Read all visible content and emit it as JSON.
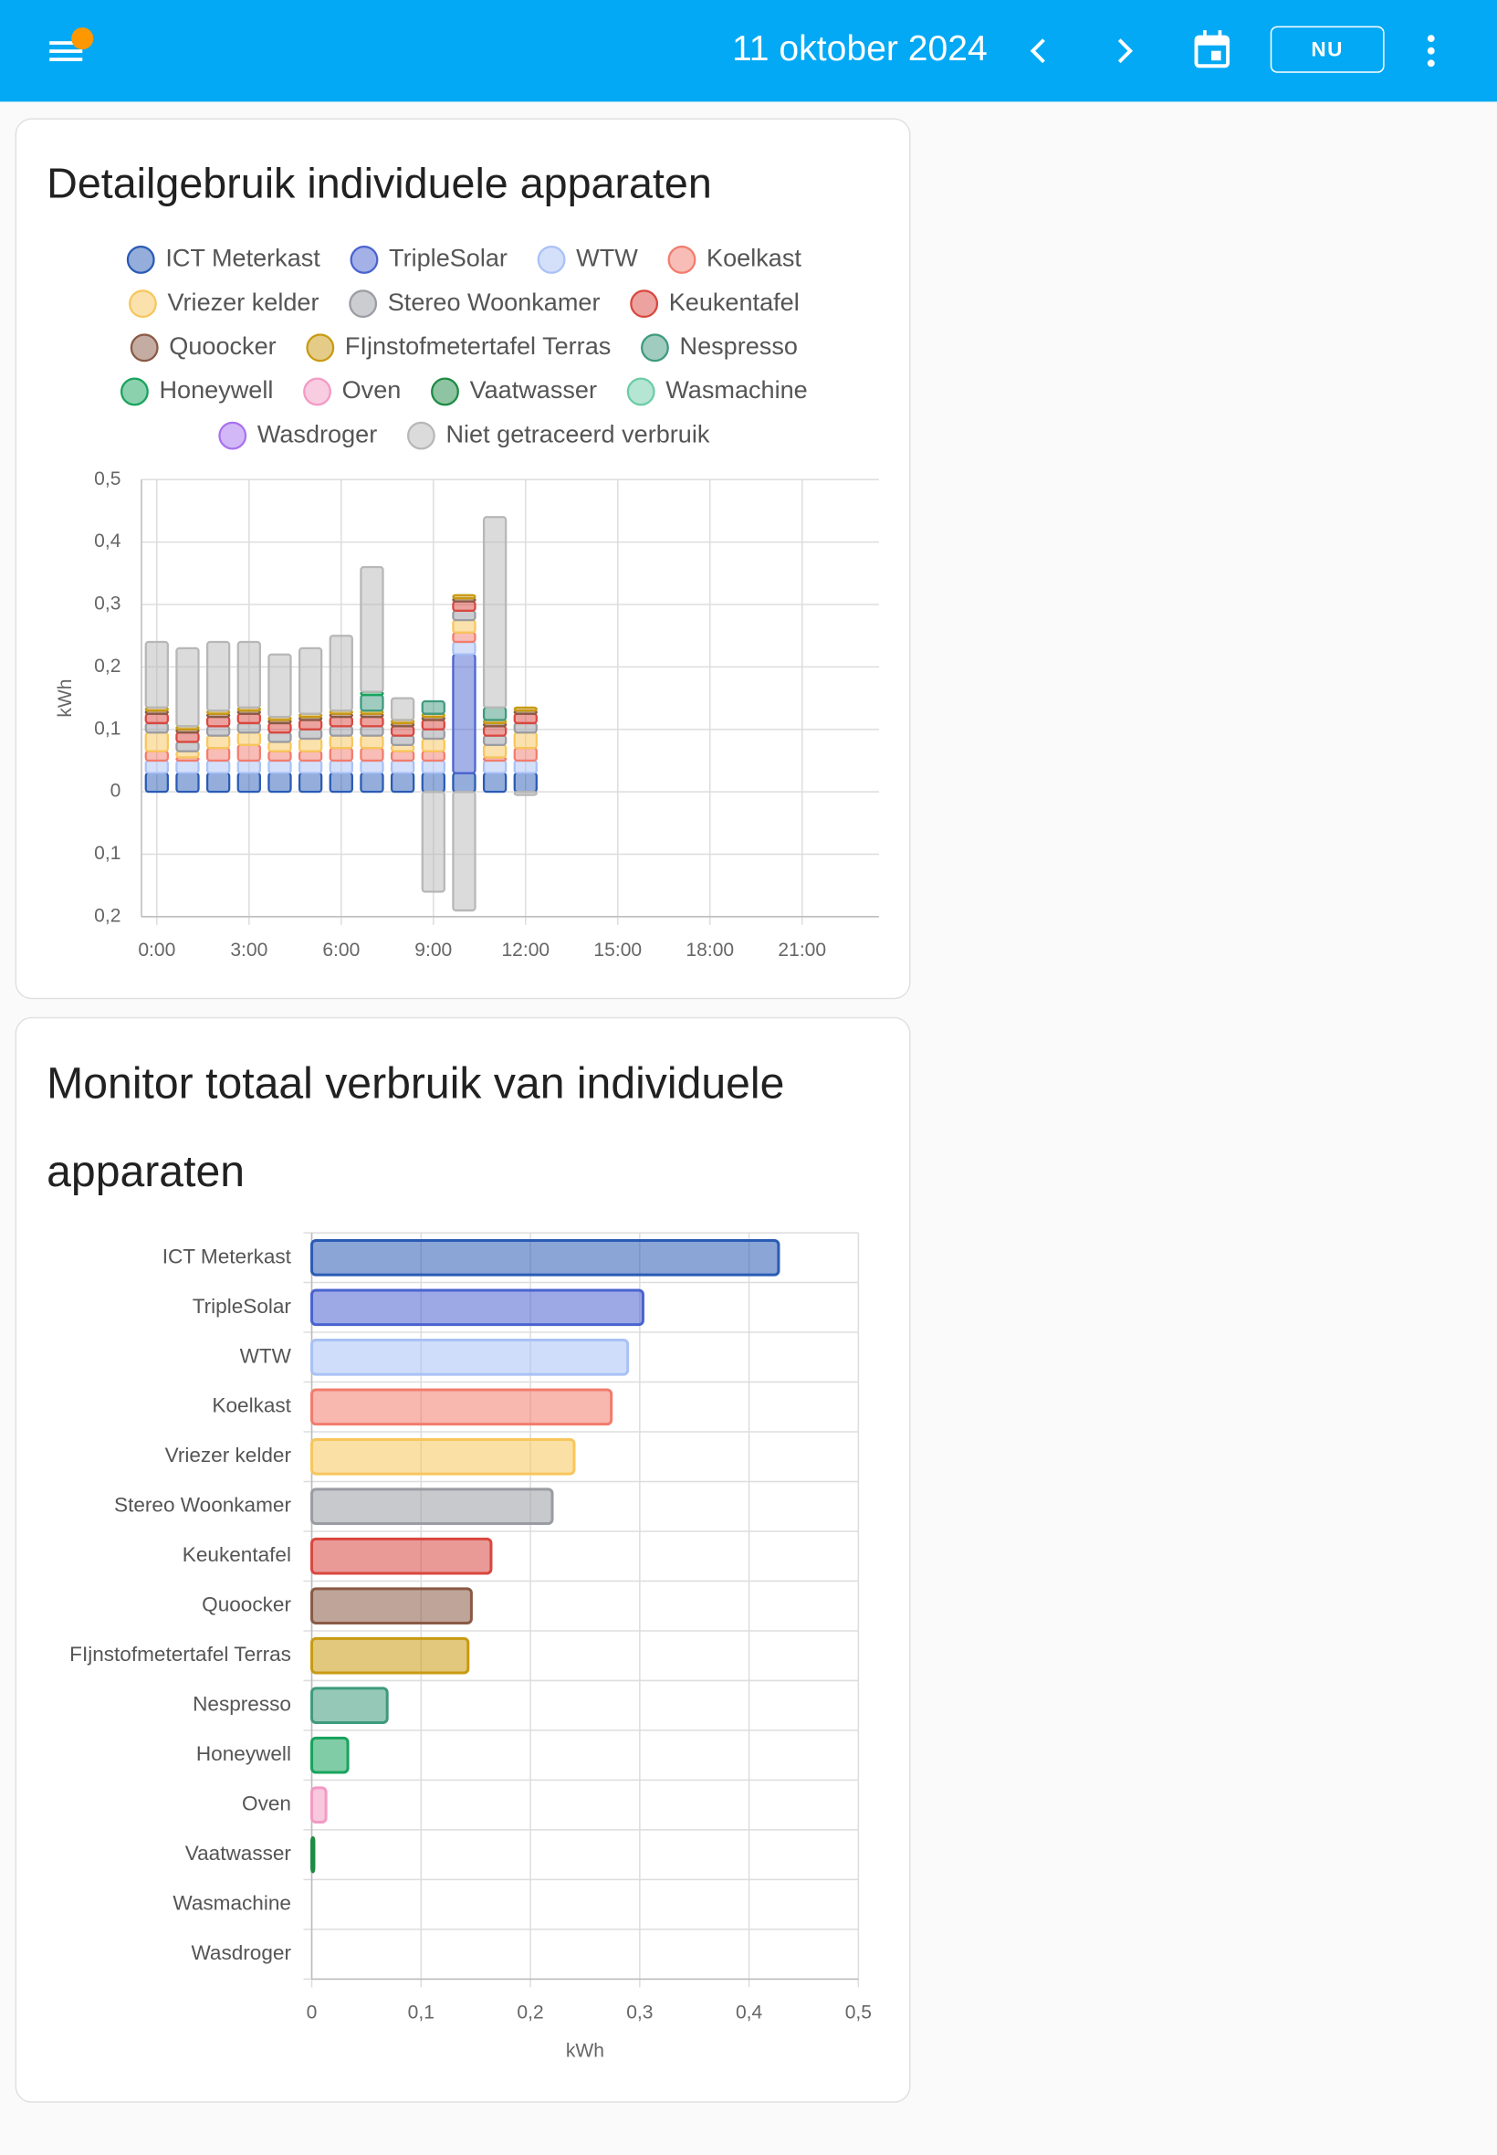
{
  "header": {
    "title": "11 oktober 2024",
    "today_button": "NU"
  },
  "cards": [
    {
      "title": "Detailgebruik individuele apparaten",
      "chart_data": {
        "type": "bar",
        "stacked": true,
        "ylabel": "kWh",
        "x": [
          0,
          1,
          2,
          3,
          4,
          5,
          6,
          7,
          8,
          9,
          10,
          11,
          12
        ],
        "xlim": [
          -0.5,
          23.5
        ],
        "xticks": [
          {
            "value": 0,
            "label": "0:00"
          },
          {
            "value": 3,
            "label": "3:00"
          },
          {
            "value": 6,
            "label": "6:00"
          },
          {
            "value": 9,
            "label": "9:00"
          },
          {
            "value": 12,
            "label": "12:00"
          },
          {
            "value": 15,
            "label": "15:00"
          },
          {
            "value": 18,
            "label": "18:00"
          },
          {
            "value": 21,
            "label": "21:00"
          }
        ],
        "ylim": [
          -0.2,
          0.5
        ],
        "yticks": [
          {
            "value": 0.5,
            "label": "0,5"
          },
          {
            "value": 0.4,
            "label": "0,4"
          },
          {
            "value": 0.3,
            "label": "0,3"
          },
          {
            "value": 0.2,
            "label": "0,2"
          },
          {
            "value": 0.1,
            "label": "0,1"
          },
          0,
          {
            "value": -0.1,
            "label": "0,1"
          },
          {
            "value": -0.2,
            "label": "0,2"
          }
        ],
        "grid": true,
        "legend": "top",
        "series": [
          {
            "name": "ICT Meterkast",
            "color": "#2a5bb5",
            "values": [
              0.03,
              0.03,
              0.03,
              0.03,
              0.03,
              0.03,
              0.03,
              0.03,
              0.03,
              0.03,
              0.03,
              0.03,
              0.03
            ]
          },
          {
            "name": "TripleSolar",
            "color": "#4a63d0",
            "values": [
              0,
              0,
              0,
              0,
              0,
              0,
              0,
              0,
              0,
              0,
              0.19,
              0,
              0
            ]
          },
          {
            "name": "WTW",
            "color": "#a9c1f5",
            "values": [
              0.02,
              0.02,
              0.02,
              0.02,
              0.02,
              0.02,
              0.02,
              0.02,
              0.02,
              0.02,
              0.02,
              0.02,
              0.02
            ]
          },
          {
            "name": "Koelkast",
            "color": "#f27c6d",
            "values": [
              0.015,
              0.005,
              0.02,
              0.025,
              0.015,
              0.015,
              0.02,
              0.02,
              0.015,
              0.015,
              0.015,
              0.005,
              0.02
            ]
          },
          {
            "name": "Vriezer kelder",
            "color": "#f7c65c",
            "values": [
              0.03,
              0.01,
              0.02,
              0.02,
              0.015,
              0.02,
              0.02,
              0.02,
              0.01,
              0.02,
              0.02,
              0.02,
              0.025
            ]
          },
          {
            "name": "Stereo Woonkamer",
            "color": "#9a9ca3",
            "values": [
              0.015,
              0.015,
              0.015,
              0.015,
              0.015,
              0.015,
              0.015,
              0.015,
              0.015,
              0.015,
              0.015,
              0.015,
              0.015
            ]
          },
          {
            "name": "Keukentafel",
            "color": "#d9473f",
            "values": [
              0.015,
              0.015,
              0.015,
              0.015,
              0.015,
              0.015,
              0.015,
              0.015,
              0.015,
              0.015,
              0.015,
              0.015,
              0.015
            ]
          },
          {
            "name": "Quoocker",
            "color": "#8a5a45",
            "values": [
              0.005,
              0.005,
              0.005,
              0.005,
              0.005,
              0.005,
              0.005,
              0.005,
              0.005,
              0.005,
              0.005,
              0.005,
              0.005
            ]
          },
          {
            "name": "FIjnstofmetertafel Terras",
            "color": "#c99a12",
            "values": [
              0.005,
              0.005,
              0.005,
              0.005,
              0.005,
              0.005,
              0.005,
              0.005,
              0.005,
              0.005,
              0.005,
              0.005,
              0.005
            ]
          },
          {
            "name": "Nespresso",
            "color": "#3f9a7e",
            "values": [
              0,
              0,
              0,
              0,
              0,
              0,
              0,
              0.025,
              0,
              0.02,
              0,
              0.02,
              0
            ]
          },
          {
            "name": "Honeywell",
            "color": "#18a35c",
            "values": [
              0,
              0,
              0,
              0,
              0,
              0,
              0,
              0.005,
              0,
              0,
              0,
              0,
              0
            ]
          },
          {
            "name": "Oven",
            "color": "#f29ac4",
            "values": [
              0,
              0,
              0,
              0,
              0,
              0,
              0,
              0,
              0,
              0,
              0,
              0,
              0
            ]
          },
          {
            "name": "Vaatwasser",
            "color": "#1e8a44",
            "values": [
              0,
              0,
              0,
              0,
              0,
              0,
              0,
              0,
              0,
              0,
              0,
              0,
              0
            ]
          },
          {
            "name": "Wasmachine",
            "color": "#6ccca8",
            "values": [
              0,
              0,
              0,
              0,
              0,
              0,
              0,
              0,
              0,
              0,
              0,
              0,
              0
            ]
          },
          {
            "name": "Wasdroger",
            "color": "#a872f0",
            "values": [
              0,
              0,
              0,
              0,
              0,
              0,
              0,
              0,
              0,
              0,
              0,
              0,
              0
            ]
          },
          {
            "name": "Niet getraceerd verbruik",
            "color": "#b7b7b7",
            "values": [
              0.105,
              0.125,
              0.11,
              0.105,
              0.1,
              0.105,
              0.12,
              0.2,
              0.035,
              -0.16,
              -0.19,
              0.305,
              -0.005
            ]
          }
        ]
      }
    },
    {
      "title": "Monitor totaal verbruik van individuele apparaten",
      "chart_data": {
        "type": "bar",
        "orientation": "horizontal",
        "xlabel": "kWh",
        "categories": [
          "ICT Meterkast",
          "TripleSolar",
          "WTW",
          "Koelkast",
          "Vriezer kelder",
          "Stereo Woonkamer",
          "Keukentafel",
          "Quoocker",
          "FIjnstofmetertafel Terras",
          "Nespresso",
          "Honeywell",
          "Oven",
          "Vaatwasser",
          "Wasmachine",
          "Wasdroger"
        ],
        "values": [
          0.427,
          0.303,
          0.289,
          0.274,
          0.24,
          0.22,
          0.164,
          0.146,
          0.143,
          0.069,
          0.033,
          0.013,
          0.002,
          0,
          0
        ],
        "colors": [
          "#2a5bb5",
          "#4a63d0",
          "#a9c1f5",
          "#f27c6d",
          "#f7c65c",
          "#9a9ca3",
          "#d9473f",
          "#8a5a45",
          "#c99a12",
          "#3f9a7e",
          "#18a35c",
          "#f29ac4",
          "#1e8a44",
          "#6ccca8",
          "#a872f0"
        ],
        "xlim": [
          0,
          0.5
        ],
        "xticks": [
          0,
          {
            "value": 0.1,
            "label": "0,1"
          },
          {
            "value": 0.2,
            "label": "0,2"
          },
          {
            "value": 0.3,
            "label": "0,3"
          },
          {
            "value": 0.4,
            "label": "0,4"
          },
          {
            "value": 0.5,
            "label": "0,5"
          }
        ],
        "grid": true
      }
    }
  ]
}
